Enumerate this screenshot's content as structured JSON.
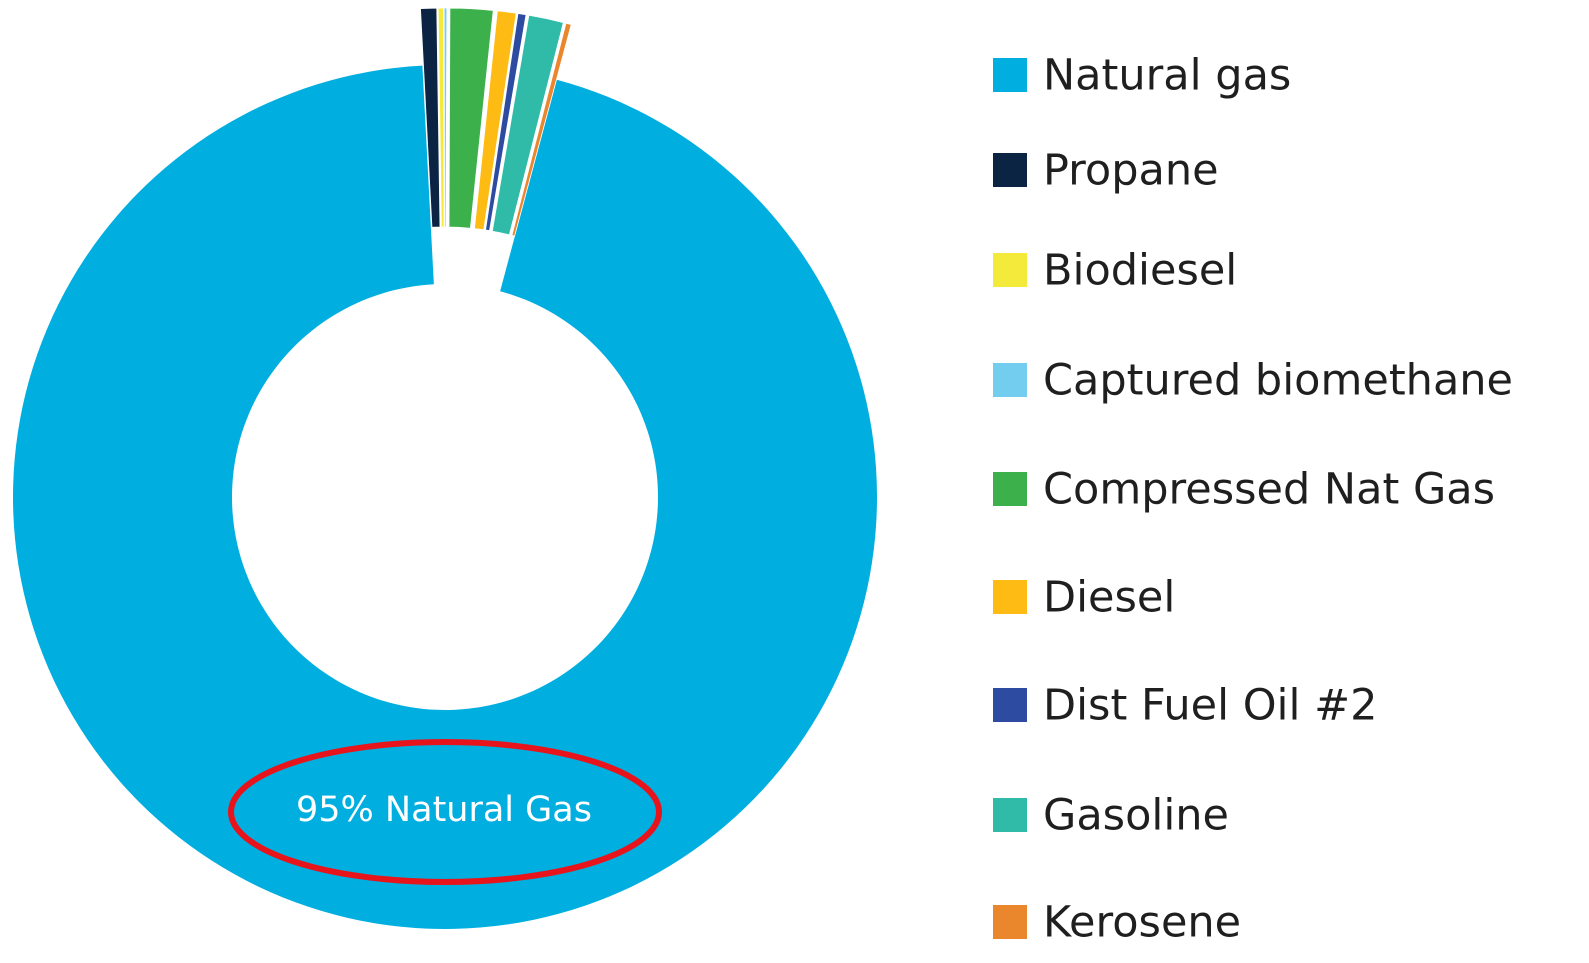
{
  "chart_data": {
    "type": "donut",
    "annotation": "95% Natural Gas",
    "categories": [
      "Natural gas",
      "Propane",
      "Biodiesel",
      "Captured biomethane",
      "Compressed Nat Gas",
      "Diesel",
      "Dist Fuel Oil #2",
      "Gasoline",
      "Kerosene"
    ],
    "values": [
      95,
      0.6,
      0.2,
      0.1,
      1.6,
      0.7,
      0.3,
      1.3,
      0.2
    ],
    "colors": [
      "#00aee0",
      "#0b2444",
      "#f3ea3c",
      "#72cdee",
      "#3cb14b",
      "#fdbb14",
      "#2c4ba1",
      "#2fbba8",
      "#ea862b"
    ],
    "legend": "right"
  }
}
